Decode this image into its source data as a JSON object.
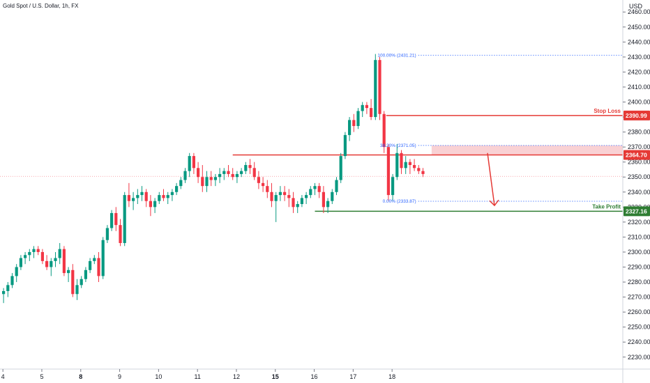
{
  "header": {
    "title": "Gold Spot / U.S. Dollar, 1h, FX",
    "currency": "USD"
  },
  "colors": {
    "up": "#089981",
    "down": "#f23645",
    "support": "#2e7d32",
    "resistance": "#e53935",
    "fib": "#2962ff",
    "zone": "#f8c9cc",
    "arrow": "#e53935"
  },
  "chart_data": {
    "type": "candlestick",
    "symbol": "Gold Spot / U.S. Dollar",
    "timeframe": "1h",
    "ylim": [
      2222,
      2468
    ],
    "y_ticks": [
      2230,
      2240,
      2250,
      2260,
      2270,
      2280,
      2290,
      2300,
      2310,
      2320,
      2330,
      2340,
      2350,
      2360,
      2370,
      2380,
      2390,
      2400,
      2410,
      2420,
      2430,
      2440,
      2450,
      2460
    ],
    "x_ticks": [
      {
        "label": "4",
        "pos": 0.35,
        "bold": false
      },
      {
        "label": "5",
        "pos": 9.35,
        "bold": false
      },
      {
        "label": "8",
        "pos": 18.35,
        "bold": true
      },
      {
        "label": "9",
        "pos": 27.35,
        "bold": false
      },
      {
        "label": "10",
        "pos": 36.35,
        "bold": false
      },
      {
        "label": "11",
        "pos": 45.35,
        "bold": false
      },
      {
        "label": "12",
        "pos": 54.35,
        "bold": false
      },
      {
        "label": "15",
        "pos": 63.35,
        "bold": true
      },
      {
        "label": "16",
        "pos": 72.35,
        "bold": false
      },
      {
        "label": "17",
        "pos": 81.35,
        "bold": false
      },
      {
        "label": "18",
        "pos": 90.35,
        "bold": false
      }
    ],
    "candles": [
      [
        2272,
        2276,
        2266,
        2274
      ],
      [
        2274,
        2280,
        2270,
        2278
      ],
      [
        2278,
        2286,
        2276,
        2284
      ],
      [
        2284,
        2292,
        2280,
        2290
      ],
      [
        2290,
        2298,
        2288,
        2296
      ],
      [
        2296,
        2300,
        2292,
        2298
      ],
      [
        2298,
        2302,
        2294,
        2300
      ],
      [
        2300,
        2304,
        2296,
        2302
      ],
      [
        2302,
        2304,
        2298,
        2300
      ],
      [
        2300,
        2302,
        2292,
        2294
      ],
      [
        2294,
        2298,
        2288,
        2290
      ],
      [
        2290,
        2296,
        2284,
        2294
      ],
      [
        2294,
        2300,
        2290,
        2296
      ],
      [
        2296,
        2306,
        2292,
        2302
      ],
      [
        2302,
        2304,
        2284,
        2286
      ],
      [
        2286,
        2290,
        2280,
        2288
      ],
      [
        2288,
        2292,
        2270,
        2272
      ],
      [
        2272,
        2282,
        2268,
        2278
      ],
      [
        2278,
        2284,
        2276,
        2282
      ],
      [
        2282,
        2290,
        2280,
        2288
      ],
      [
        2288,
        2296,
        2286,
        2294
      ],
      [
        2294,
        2298,
        2292,
        2296
      ],
      [
        2296,
        2300,
        2280,
        2284
      ],
      [
        2284,
        2310,
        2282,
        2308
      ],
      [
        2308,
        2318,
        2306,
        2316
      ],
      [
        2316,
        2328,
        2314,
        2326
      ],
      [
        2326,
        2330,
        2314,
        2318
      ],
      [
        2318,
        2322,
        2304,
        2306
      ],
      [
        2306,
        2340,
        2304,
        2338
      ],
      [
        2338,
        2346,
        2330,
        2334
      ],
      [
        2334,
        2340,
        2328,
        2336
      ],
      [
        2336,
        2342,
        2332,
        2338
      ],
      [
        2338,
        2344,
        2334,
        2340
      ],
      [
        2340,
        2342,
        2330,
        2334
      ],
      [
        2334,
        2338,
        2324,
        2330
      ],
      [
        2330,
        2336,
        2326,
        2334
      ],
      [
        2334,
        2340,
        2332,
        2338
      ],
      [
        2338,
        2342,
        2334,
        2336
      ],
      [
        2336,
        2340,
        2332,
        2338
      ],
      [
        2338,
        2342,
        2334,
        2340
      ],
      [
        2340,
        2346,
        2338,
        2344
      ],
      [
        2344,
        2350,
        2342,
        2348
      ],
      [
        2348,
        2356,
        2346,
        2354
      ],
      [
        2354,
        2366,
        2350,
        2364
      ],
      [
        2364,
        2366,
        2352,
        2356
      ],
      [
        2356,
        2360,
        2346,
        2350
      ],
      [
        2350,
        2358,
        2340,
        2344
      ],
      [
        2344,
        2354,
        2340,
        2350
      ],
      [
        2350,
        2354,
        2344,
        2348
      ],
      [
        2348,
        2352,
        2344,
        2350
      ],
      [
        2350,
        2356,
        2346,
        2352
      ],
      [
        2352,
        2356,
        2348,
        2354
      ],
      [
        2354,
        2358,
        2350,
        2352
      ],
      [
        2352,
        2356,
        2348,
        2350
      ],
      [
        2350,
        2354,
        2346,
        2352
      ],
      [
        2352,
        2356,
        2350,
        2354
      ],
      [
        2354,
        2360,
        2352,
        2358
      ],
      [
        2358,
        2362,
        2352,
        2356
      ],
      [
        2356,
        2360,
        2348,
        2350
      ],
      [
        2350,
        2354,
        2342,
        2346
      ],
      [
        2346,
        2350,
        2340,
        2344
      ],
      [
        2344,
        2348,
        2336,
        2340
      ],
      [
        2340,
        2346,
        2330,
        2334
      ],
      [
        2334,
        2340,
        2320,
        2338
      ],
      [
        2338,
        2344,
        2334,
        2340
      ],
      [
        2340,
        2344,
        2334,
        2338
      ],
      [
        2338,
        2342,
        2330,
        2336
      ],
      [
        2336,
        2340,
        2326,
        2330
      ],
      [
        2330,
        2334,
        2326,
        2332
      ],
      [
        2332,
        2338,
        2330,
        2336
      ],
      [
        2336,
        2340,
        2332,
        2338
      ],
      [
        2338,
        2344,
        2336,
        2342
      ],
      [
        2342,
        2346,
        2338,
        2344
      ],
      [
        2344,
        2346,
        2336,
        2340
      ],
      [
        2340,
        2344,
        2326,
        2330
      ],
      [
        2330,
        2336,
        2326,
        2334
      ],
      [
        2334,
        2342,
        2332,
        2340
      ],
      [
        2340,
        2350,
        2338,
        2348
      ],
      [
        2348,
        2366,
        2346,
        2364
      ],
      [
        2364,
        2380,
        2362,
        2378
      ],
      [
        2378,
        2390,
        2374,
        2388
      ],
      [
        2388,
        2392,
        2380,
        2384
      ],
      [
        2384,
        2396,
        2382,
        2394
      ],
      [
        2394,
        2400,
        2390,
        2398
      ],
      [
        2398,
        2400,
        2392,
        2396
      ],
      [
        2396,
        2402,
        2388,
        2390
      ],
      [
        2390,
        2432,
        2388,
        2428
      ],
      [
        2428,
        2430,
        2388,
        2392
      ],
      [
        2392,
        2394,
        2366,
        2370
      ],
      [
        2370,
        2372,
        2334,
        2338
      ],
      [
        2338,
        2352,
        2334,
        2350
      ],
      [
        2350,
        2372,
        2348,
        2366
      ],
      [
        2366,
        2368,
        2352,
        2356
      ],
      [
        2356,
        2364,
        2352,
        2360
      ],
      [
        2360,
        2362,
        2352,
        2358
      ],
      [
        2358,
        2362,
        2354,
        2356
      ],
      [
        2356,
        2358,
        2352,
        2354
      ],
      [
        2354,
        2356,
        2350,
        2352
      ]
    ],
    "levels": {
      "stop_loss": {
        "label": "Stop Loss",
        "price": "2390.99",
        "value": 2390.99
      },
      "entry": {
        "price": "2364.70",
        "value": 2364.7
      },
      "take_profit": {
        "label": "Take Profit",
        "price": "2327.16",
        "value": 2327.16
      },
      "current": {
        "value": 2350.5
      }
    },
    "fib": [
      {
        "label": "100.00% (2431.21)",
        "value": 2431.21
      },
      {
        "label": "38.20% (2371.05)",
        "value": 2371.05
      },
      {
        "label": "0.00% (2333.87)",
        "value": 2333.87
      }
    ]
  }
}
